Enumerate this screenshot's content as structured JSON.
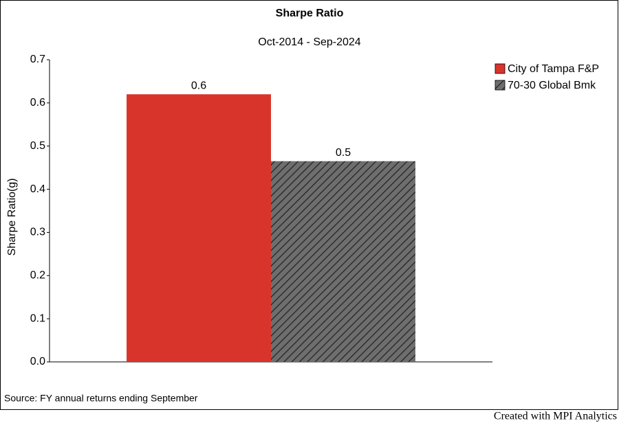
{
  "chart_data": {
    "type": "bar",
    "title": "Sharpe Ratio",
    "subtitle": "Oct-2014 - Sep-2024",
    "y_label": "Sharpe Ratio(g)",
    "categories": [
      null
    ],
    "series": [
      {
        "name": "City of Tampa F&P",
        "color": "#d9342b",
        "values": [
          0.62
        ],
        "value_labels": [
          "0.6"
        ]
      },
      {
        "name": "70-30 Global Bmk",
        "color": "#6e6e6e",
        "hatch": true,
        "values": [
          0.465
        ],
        "value_labels": [
          "0.5"
        ]
      }
    ],
    "ylim": [
      0,
      0.7
    ],
    "yticks": [
      {
        "value": 0,
        "label": "0.0"
      },
      0.1,
      0.2,
      0.3,
      0.4,
      0.5,
      0.6,
      0.7
    ],
    "legend": "top-right",
    "source": "Source: FY annual returns ending September",
    "credit": "Created with MPI Analytics"
  }
}
